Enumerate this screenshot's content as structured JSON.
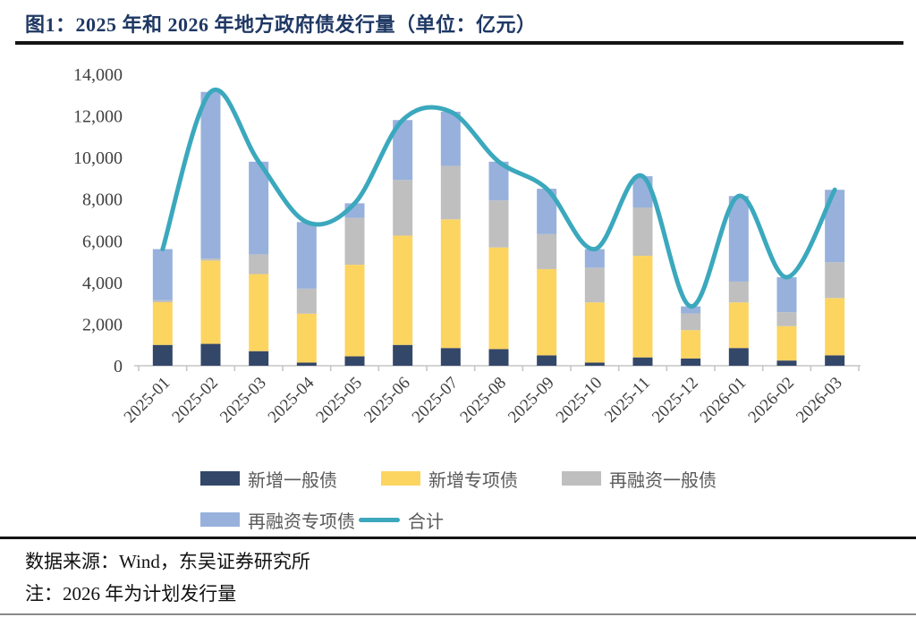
{
  "header": {
    "title": "图1：2025 年和 2026 年地方政府债发行量（单位：亿元）"
  },
  "footer": {
    "source": "数据来源：Wind，东吴证券研究所",
    "note": "注：2026 年为计划发行量"
  },
  "colors": {
    "title": "#1F3864",
    "axis_text": "#404040",
    "legend_text": "#595959",
    "axis_line": "#C6C6C6"
  },
  "chart_data": {
    "type": "bar",
    "stacked": true,
    "title": "2025 年和 2026 年地方政府债发行量",
    "unit": "亿元",
    "grid": false,
    "legend_position": "bottom",
    "ylim": [
      0,
      14000
    ],
    "ytick_interval": 2000,
    "yticks": [
      "0",
      "2,000",
      "4,000",
      "6,000",
      "8,000",
      "10,000",
      "12,000",
      "14,000"
    ],
    "categories": [
      "2025-01",
      "2025-02",
      "2025-03",
      "2025-04",
      "2025-05",
      "2025-06",
      "2025-07",
      "2025-08",
      "2025-09",
      "2025-10",
      "2025-11",
      "2025-12",
      "2026-01",
      "2026-02",
      "2026-03"
    ],
    "series": [
      {
        "name": "新增一般债",
        "color": "#334769",
        "values": [
          1000,
          1050,
          700,
          150,
          450,
          1000,
          850,
          800,
          500,
          150,
          400,
          350,
          850,
          250,
          500
        ]
      },
      {
        "name": "新增专项债",
        "color": "#FCD460",
        "values": [
          2050,
          4000,
          3700,
          2350,
          4400,
          5250,
          6180,
          4880,
          4140,
          2890,
          4880,
          1360,
          2190,
          1650,
          2750
        ]
      },
      {
        "name": "再融资一般债",
        "color": "#BFBFBF",
        "values": [
          100,
          100,
          950,
          1200,
          2250,
          2670,
          2570,
          2260,
          1680,
          1670,
          2320,
          800,
          1000,
          670,
          1720
        ]
      },
      {
        "name": "再融资专项债",
        "color": "#97B1DC",
        "values": [
          2450,
          8000,
          4450,
          3200,
          700,
          2880,
          2600,
          1860,
          2180,
          890,
          1500,
          340,
          4110,
          1680,
          3480
        ]
      }
    ],
    "line_series": {
      "name": "合计",
      "color": "#3BA8BD",
      "values": [
        5600,
        13150,
        9800,
        6900,
        7800,
        11800,
        12200,
        9800,
        8500,
        5600,
        9100,
        2850,
        8150,
        4250,
        8450
      ]
    }
  }
}
